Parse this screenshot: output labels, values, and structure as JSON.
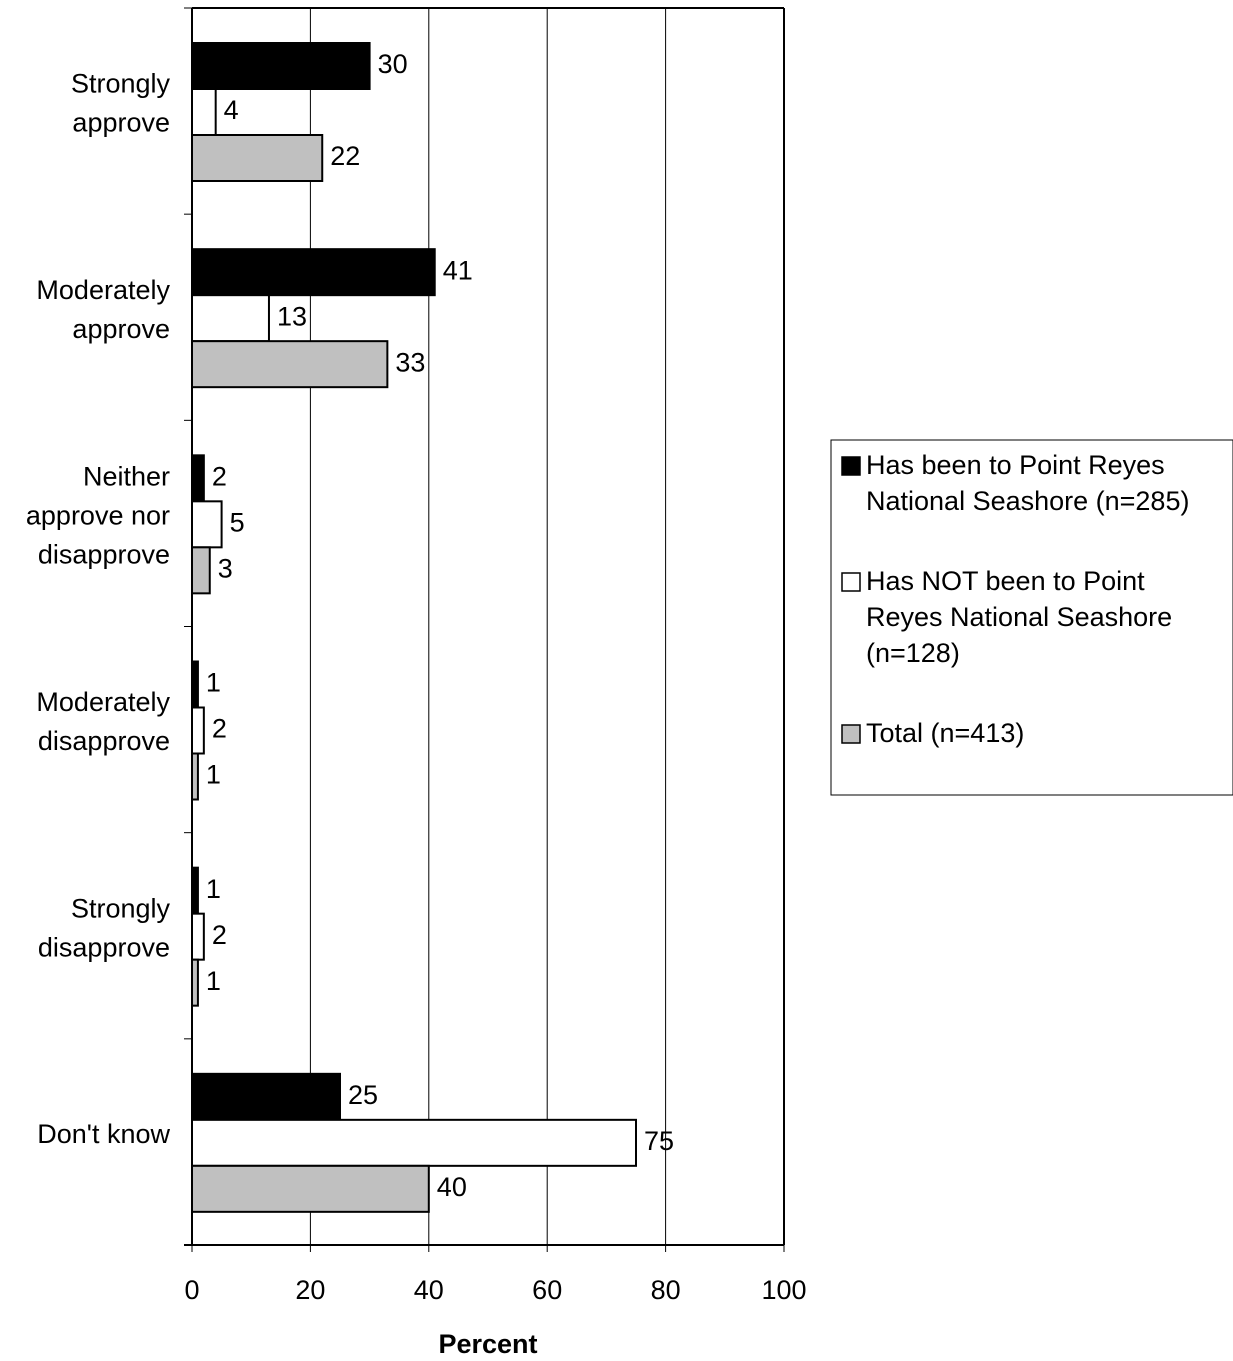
{
  "chart_data": {
    "type": "hbar",
    "categories": [
      "Strongly approve",
      "Moderately approve",
      "Neither approve nor disapprove",
      "Moderately disapprove",
      "Strongly disapprove",
      "Don't know"
    ],
    "series": [
      {
        "name": "Has been to Point Reyes National Seashore (n=285)",
        "color": "#000000",
        "values": [
          30,
          41,
          2,
          1,
          1,
          25
        ]
      },
      {
        "name": "Has NOT been to Point Reyes National Seashore (n=128)",
        "color": "#ffffff",
        "values": [
          4,
          13,
          5,
          2,
          2,
          75
        ]
      },
      {
        "name": "Total (n=413)",
        "color": "#c0c0c0",
        "values": [
          22,
          33,
          3,
          1,
          1,
          40
        ]
      }
    ],
    "xlabel": "Percent",
    "xlim": [
      0,
      100
    ],
    "xticks": [
      0,
      20,
      40,
      60,
      80,
      100
    ],
    "grid": true,
    "legend": "right"
  }
}
